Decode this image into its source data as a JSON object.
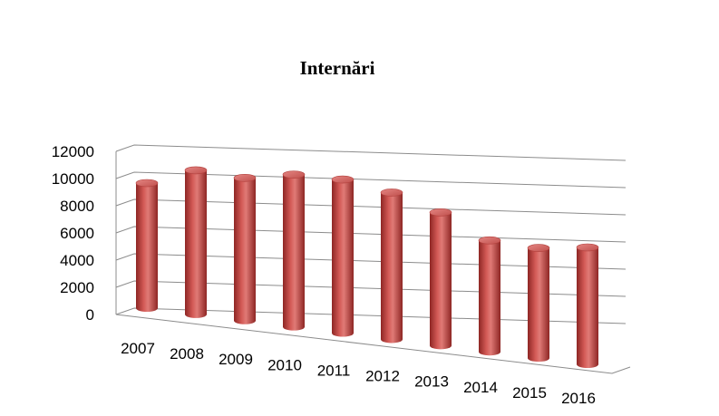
{
  "chart_data": {
    "type": "bar",
    "style": "3d-cylinder",
    "title": "Internări",
    "xlabel": "",
    "ylabel": "",
    "categories": [
      "2007",
      "2008",
      "2009",
      "2010",
      "2011",
      "2012",
      "2013",
      "2014",
      "2015",
      "2016"
    ],
    "series": [
      {
        "values": [
          9200,
          10600,
          10500,
          11200,
          11300,
          10800,
          9800,
          8200,
          8100,
          8600
        ]
      }
    ],
    "ylim": [
      0,
      12000
    ],
    "yticks": [
      "0",
      "2000",
      "4000",
      "6000",
      "8000",
      "10000",
      "12000"
    ],
    "grid": true,
    "legend": "none",
    "colors": {
      "bar": "#c0504d",
      "bar_dark": "#8e2624",
      "bar_light": "#e58683",
      "grid": "#8c8c8c"
    }
  }
}
